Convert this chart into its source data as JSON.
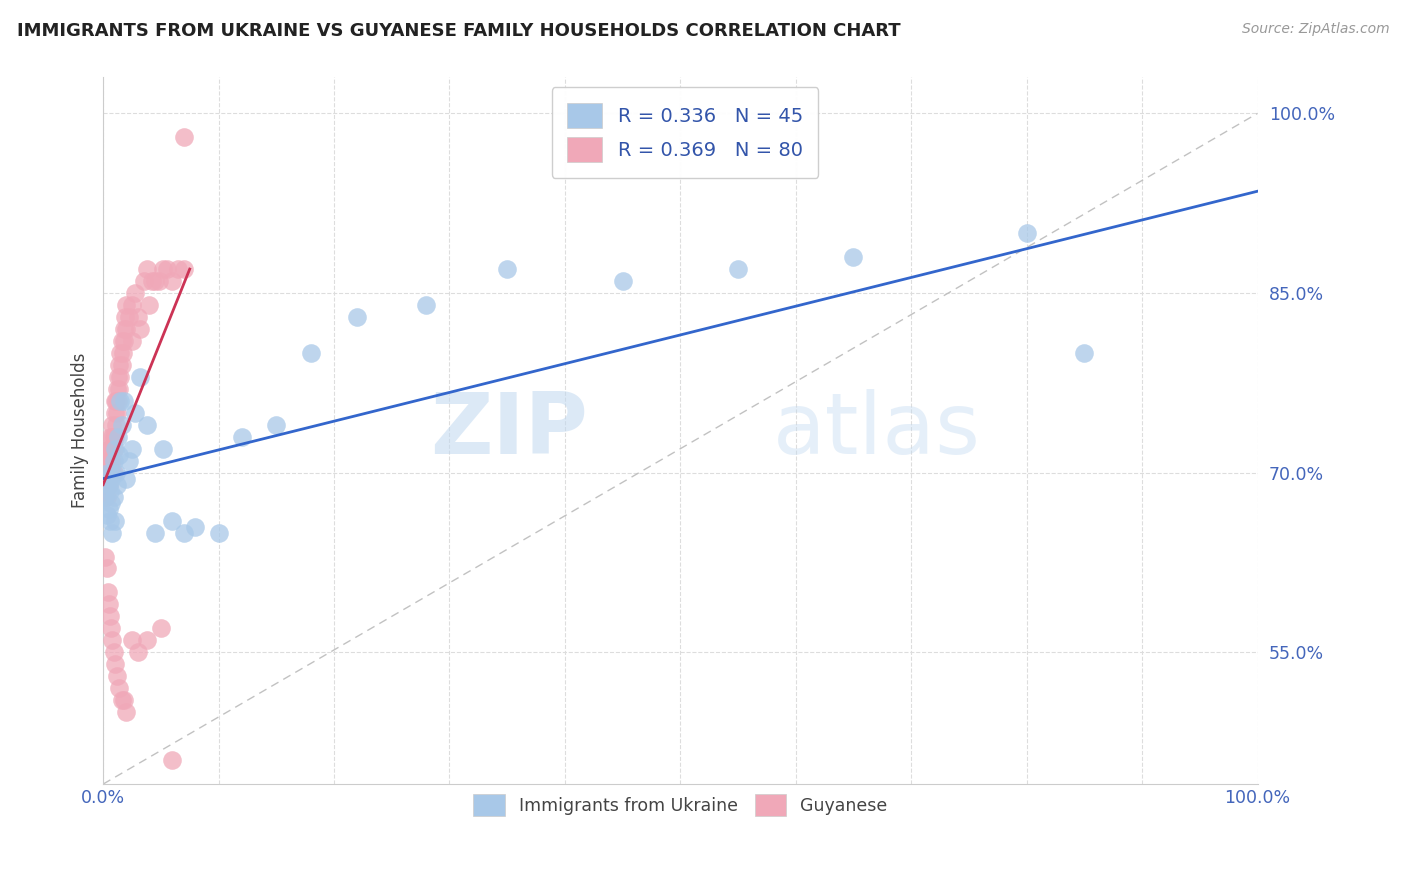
{
  "title": "IMMIGRANTS FROM UKRAINE VS GUYANESE FAMILY HOUSEHOLDS CORRELATION CHART",
  "source": "Source: ZipAtlas.com",
  "ylabel": "Family Households",
  "blue_color": "#A8C8E8",
  "pink_color": "#F0A8B8",
  "blue_line_color": "#3366CC",
  "pink_line_color": "#CC3355",
  "diag_color": "#CCCCCC",
  "legend_R_blue": "0.336",
  "legend_N_blue": "45",
  "legend_R_pink": "0.369",
  "legend_N_pink": "80",
  "watermark_zip": "ZIP",
  "watermark_atlas": "atlas",
  "xlim": [
    0.0,
    1.0
  ],
  "ylim": [
    0.44,
    1.03
  ],
  "ytick_positions": [
    0.55,
    0.7,
    0.85,
    1.0
  ],
  "ytick_labels": [
    "55.0%",
    "70.0%",
    "85.0%",
    "100.0%"
  ],
  "ukraine_x": [
    0.002,
    0.003,
    0.004,
    0.005,
    0.005,
    0.006,
    0.006,
    0.007,
    0.007,
    0.008,
    0.008,
    0.009,
    0.009,
    0.01,
    0.01,
    0.011,
    0.012,
    0.013,
    0.014,
    0.015,
    0.016,
    0.018,
    0.02,
    0.022,
    0.025,
    0.028,
    0.032,
    0.038,
    0.045,
    0.052,
    0.06,
    0.07,
    0.08,
    0.1,
    0.12,
    0.15,
    0.18,
    0.22,
    0.28,
    0.35,
    0.45,
    0.55,
    0.65,
    0.8,
    0.85
  ],
  "ukraine_y": [
    0.68,
    0.665,
    0.7,
    0.69,
    0.67,
    0.685,
    0.66,
    0.675,
    0.695,
    0.7,
    0.65,
    0.71,
    0.68,
    0.66,
    0.72,
    0.7,
    0.69,
    0.73,
    0.715,
    0.76,
    0.74,
    0.76,
    0.695,
    0.71,
    0.72,
    0.75,
    0.78,
    0.74,
    0.65,
    0.72,
    0.66,
    0.65,
    0.655,
    0.65,
    0.73,
    0.74,
    0.8,
    0.83,
    0.84,
    0.87,
    0.86,
    0.87,
    0.88,
    0.9,
    0.8
  ],
  "guyanese_x": [
    0.001,
    0.002,
    0.002,
    0.003,
    0.003,
    0.004,
    0.004,
    0.005,
    0.005,
    0.005,
    0.006,
    0.006,
    0.006,
    0.007,
    0.007,
    0.007,
    0.008,
    0.008,
    0.008,
    0.009,
    0.009,
    0.009,
    0.01,
    0.01,
    0.01,
    0.011,
    0.011,
    0.012,
    0.012,
    0.013,
    0.013,
    0.014,
    0.014,
    0.015,
    0.015,
    0.016,
    0.016,
    0.017,
    0.018,
    0.018,
    0.019,
    0.02,
    0.02,
    0.022,
    0.025,
    0.025,
    0.028,
    0.03,
    0.032,
    0.035,
    0.038,
    0.04,
    0.042,
    0.045,
    0.048,
    0.052,
    0.055,
    0.06,
    0.065,
    0.07,
    0.002,
    0.003,
    0.004,
    0.005,
    0.006,
    0.007,
    0.008,
    0.009,
    0.01,
    0.012,
    0.014,
    0.016,
    0.018,
    0.02,
    0.025,
    0.03,
    0.038,
    0.05,
    0.06,
    0.07
  ],
  "guyanese_y": [
    0.68,
    0.69,
    0.7,
    0.68,
    0.7,
    0.71,
    0.695,
    0.72,
    0.69,
    0.71,
    0.7,
    0.72,
    0.73,
    0.71,
    0.7,
    0.72,
    0.73,
    0.71,
    0.74,
    0.72,
    0.7,
    0.73,
    0.75,
    0.73,
    0.76,
    0.74,
    0.76,
    0.75,
    0.77,
    0.76,
    0.78,
    0.77,
    0.79,
    0.78,
    0.8,
    0.79,
    0.81,
    0.8,
    0.81,
    0.82,
    0.83,
    0.82,
    0.84,
    0.83,
    0.81,
    0.84,
    0.85,
    0.83,
    0.82,
    0.86,
    0.87,
    0.84,
    0.86,
    0.86,
    0.86,
    0.87,
    0.87,
    0.86,
    0.87,
    0.87,
    0.63,
    0.62,
    0.6,
    0.59,
    0.58,
    0.57,
    0.56,
    0.55,
    0.54,
    0.53,
    0.52,
    0.51,
    0.51,
    0.5,
    0.56,
    0.55,
    0.56,
    0.57,
    0.46,
    0.98
  ],
  "blue_line_x": [
    0.0,
    1.0
  ],
  "blue_line_y": [
    0.695,
    0.935
  ],
  "pink_line_x": [
    0.0,
    0.075
  ],
  "pink_line_y": [
    0.69,
    0.87
  ]
}
